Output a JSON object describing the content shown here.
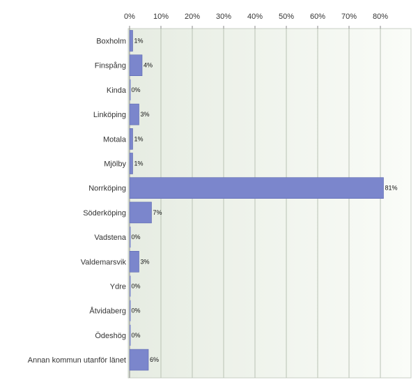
{
  "chart_data": {
    "type": "bar",
    "orientation": "horizontal",
    "categories": [
      "Boxholm",
      "Finspång",
      "Kinda",
      "Linköping",
      "Motala",
      "Mjölby",
      "Norrköping",
      "Söderköping",
      "Vadstena",
      "Valdemarsvik",
      "Ydre",
      "Åtvidaberg",
      "Ödeshög",
      "Annan kommun utanför länet"
    ],
    "values": [
      1,
      4,
      0,
      3,
      1,
      1,
      81,
      7,
      0,
      3,
      0,
      0,
      0,
      6
    ],
    "value_labels": [
      "1%",
      "4%",
      "0%",
      "3%",
      "1%",
      "1%",
      "81%",
      "7%",
      "0%",
      "3%",
      "0%",
      "0%",
      "0%",
      "6%"
    ],
    "x_ticks": [
      0,
      10,
      20,
      30,
      40,
      50,
      60,
      70,
      80
    ],
    "x_tick_labels": [
      "0%",
      "10%",
      "20%",
      "30%",
      "40%",
      "50%",
      "60%",
      "70%",
      "80%"
    ],
    "xlim": [
      0,
      90
    ],
    "title": "",
    "xlabel": "",
    "ylabel": "",
    "grid": true,
    "legend": "none",
    "colors": {
      "bar": "#7b86cc",
      "bar_edge": "#5a66b0",
      "background_start": "#e6ece2",
      "background_end": "#fafcf8",
      "gridline": "#b9c2b4",
      "axis": "#888888"
    }
  }
}
